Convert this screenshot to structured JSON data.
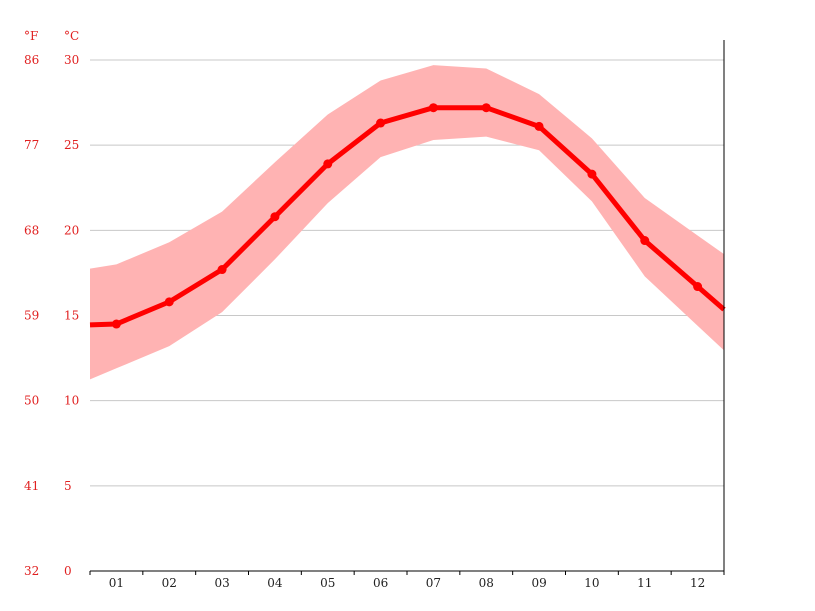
{
  "chart_data": {
    "type": "line",
    "categories": [
      "01",
      "02",
      "03",
      "04",
      "05",
      "06",
      "07",
      "08",
      "09",
      "10",
      "11",
      "12"
    ],
    "series": [
      {
        "values": [
          14.5,
          15.8,
          17.7,
          20.8,
          23.9,
          26.3,
          27.2,
          27.2,
          26.1,
          23.3,
          19.4,
          16.7
        ]
      }
    ],
    "band": {
      "max": [
        18.0,
        19.3,
        21.1,
        24.0,
        26.8,
        28.8,
        29.7,
        29.5,
        28.0,
        25.4,
        21.9,
        19.7
      ],
      "min": [
        11.9,
        13.2,
        15.2,
        18.3,
        21.6,
        24.3,
        25.3,
        25.5,
        24.7,
        21.7,
        17.3,
        14.4
      ]
    },
    "ylim": [
      0,
      30
    ],
    "yticks_c": [
      "0",
      "5",
      "10",
      "15",
      "20",
      "25",
      "30"
    ],
    "yticks_f": [
      "32",
      "41",
      "50",
      "59",
      "68",
      "77",
      "86"
    ],
    "unit_c": "°C",
    "unit_f": "°F",
    "grid": true,
    "colors": {
      "line": "#ff0000",
      "band": "#ffb3b3",
      "tick_text": "#e02020",
      "grid": "#c8c8c8"
    }
  }
}
